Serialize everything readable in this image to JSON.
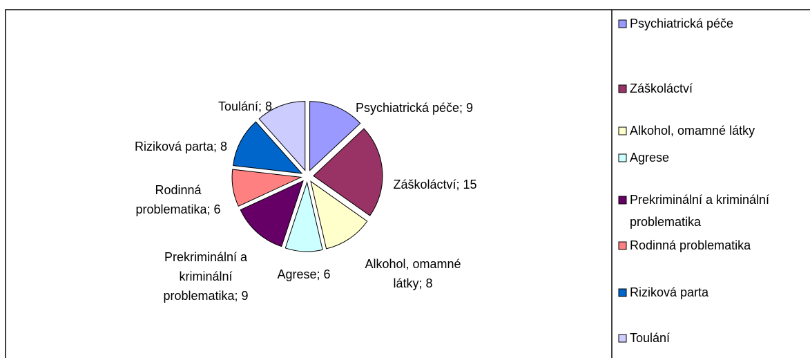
{
  "chart_data": {
    "type": "pie",
    "categories": [
      "Psychiatrická péče",
      "Záškoláctví",
      "Alkohol, omamné látky",
      "Agrese",
      "Prekriminální a kriminální problematika",
      "Rodinná problematika",
      "Riziková parta",
      "Toulání"
    ],
    "values": [
      9,
      15,
      8,
      6,
      9,
      6,
      8,
      8
    ],
    "value_labels": [
      "Psychiatrická péče; 9",
      "Záškoláctví; 15",
      "Alkohol, omamné látky; 8",
      "Agrese; 6",
      "Prekriminální a kriminální problematika; 9",
      "Rodinná problematika; 6",
      "Riziková parta; 8",
      "Toulání; 8"
    ],
    "colors": [
      "#9999ff",
      "#993366",
      "#ffffcc",
      "#ccffff",
      "#660066",
      "#ff8080",
      "#0066cc",
      "#ccccff"
    ],
    "legend": "right"
  }
}
